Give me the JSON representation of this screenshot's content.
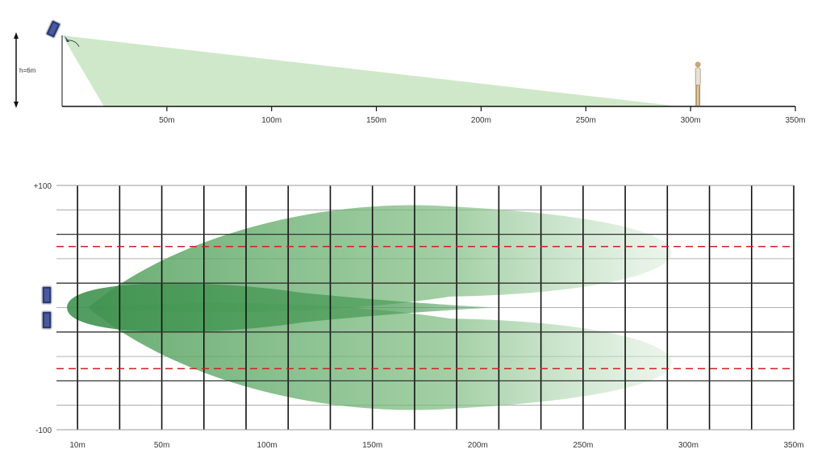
{
  "colors": {
    "side_beam": "#cfe8c9",
    "beam_outer": "#78b87a",
    "beam_inner": "#4a9a56",
    "grid_thin": "#9a9a9a",
    "grid_thick": "#111111",
    "dashed_line": "#cc2222",
    "axis": "#111111",
    "sensor_body": "#2a3a78",
    "person": "#b89a6a"
  },
  "icons": {
    "sensor": "camera-icon",
    "person": "person-icon"
  },
  "side_view": {
    "height_label": "h=6m",
    "mount_height_m": 6,
    "beam_near_m": 20,
    "beam_far_m": 295,
    "person_at_m": 300,
    "x_range_m": [
      0,
      350
    ],
    "x_ticks": [
      {
        "value": 50,
        "label": "50m"
      },
      {
        "value": 100,
        "label": "100m"
      },
      {
        "value": 150,
        "label": "150m"
      },
      {
        "value": 200,
        "label": "200m"
      },
      {
        "value": 250,
        "label": "250m"
      },
      {
        "value": 300,
        "label": "300m"
      },
      {
        "value": 350,
        "label": "350m"
      }
    ]
  },
  "top_view": {
    "y_range": [
      -100,
      100
    ],
    "y_ticks": [
      {
        "value": 100,
        "label": "+100"
      },
      {
        "value": -100,
        "label": "-100"
      }
    ],
    "x_range_m": [
      0,
      350
    ],
    "x_ticks": [
      {
        "value": 10,
        "label": "10m"
      },
      {
        "value": 50,
        "label": "50m"
      },
      {
        "value": 100,
        "label": "100m"
      },
      {
        "value": 150,
        "label": "150m"
      },
      {
        "value": 200,
        "label": "200m"
      },
      {
        "value": 250,
        "label": "250m"
      },
      {
        "value": 300,
        "label": "300m"
      },
      {
        "value": 350,
        "label": "350m"
      }
    ],
    "dashed_lines_y": [
      50,
      -50
    ],
    "beams": [
      {
        "shape": "upper-lobe",
        "near_m": 15,
        "far_m": 292,
        "center_y": 45,
        "half_width": 36
      },
      {
        "shape": "lower-lobe",
        "near_m": 15,
        "far_m": 292,
        "center_y": -45,
        "half_width": 36
      },
      {
        "shape": "inner-core",
        "near_m": 5,
        "far_m": 208,
        "center_y": 0,
        "half_width": 22
      }
    ]
  }
}
